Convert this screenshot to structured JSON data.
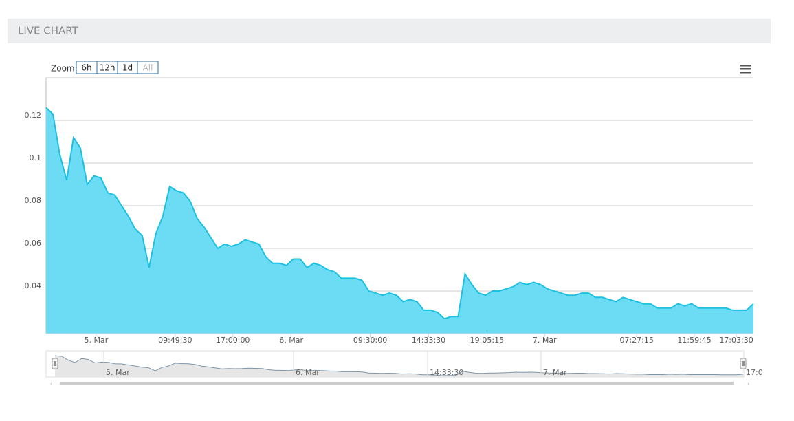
{
  "header": {
    "title": "LIVE CHART"
  },
  "zoom": {
    "label": "Zoom",
    "buttons": [
      "6h",
      "12h",
      "1d",
      "All"
    ]
  },
  "navigator": {
    "labels": [
      "5. Mar",
      "6. Mar",
      "14:33:30",
      "7. Mar",
      "17:0"
    ]
  },
  "chart_data": {
    "type": "area",
    "color": "#1cc0e0",
    "fill": "#6cdcf4",
    "values": [
      0.126,
      0.123,
      0.104,
      0.092,
      0.112,
      0.107,
      0.09,
      0.094,
      0.093,
      0.086,
      0.085,
      0.08,
      0.075,
      0.069,
      0.066,
      0.051,
      0.067,
      0.075,
      0.089,
      0.087,
      0.086,
      0.082,
      0.074,
      0.07,
      0.065,
      0.06,
      0.062,
      0.061,
      0.062,
      0.064,
      0.063,
      0.062,
      0.056,
      0.053,
      0.053,
      0.052,
      0.055,
      0.055,
      0.051,
      0.053,
      0.052,
      0.05,
      0.049,
      0.046,
      0.046,
      0.046,
      0.045,
      0.04,
      0.039,
      0.038,
      0.039,
      0.038,
      0.035,
      0.036,
      0.035,
      0.031,
      0.031,
      0.03,
      0.027,
      0.028,
      0.028,
      0.048,
      0.043,
      0.039,
      0.038,
      0.04,
      0.04,
      0.041,
      0.042,
      0.044,
      0.043,
      0.044,
      0.043,
      0.041,
      0.04,
      0.039,
      0.038,
      0.038,
      0.039,
      0.039,
      0.037,
      0.037,
      0.036,
      0.035,
      0.037,
      0.036,
      0.035,
      0.034,
      0.034,
      0.032,
      0.032,
      0.032,
      0.034,
      0.033,
      0.034,
      0.032,
      0.032,
      0.032,
      0.032,
      0.032,
      0.031,
      0.031,
      0.031,
      0.034
    ],
    "xlim": [
      0,
      103
    ],
    "xticks": [
      {
        "value": 7.3,
        "label": "5. Mar"
      },
      {
        "value": 18.8,
        "label": "09:49:30"
      },
      {
        "value": 27.2,
        "label": "17:00:00"
      },
      {
        "value": 35.7,
        "label": "6. Mar"
      },
      {
        "value": 47.2,
        "label": "09:30:00"
      },
      {
        "value": 55.7,
        "label": "14:33:30"
      },
      {
        "value": 64.2,
        "label": "19:05:15"
      },
      {
        "value": 72.6,
        "label": "7. Mar"
      },
      {
        "value": 86,
        "label": "07:27:15"
      },
      {
        "value": 94.4,
        "label": "11:59:45"
      },
      {
        "value": 100.5,
        "label": "17:03:30"
      }
    ],
    "ylim": [
      0.02,
      0.14
    ],
    "yticks": [
      0.04,
      0.06,
      0.08,
      0.1,
      0.12
    ],
    "grid": true
  }
}
